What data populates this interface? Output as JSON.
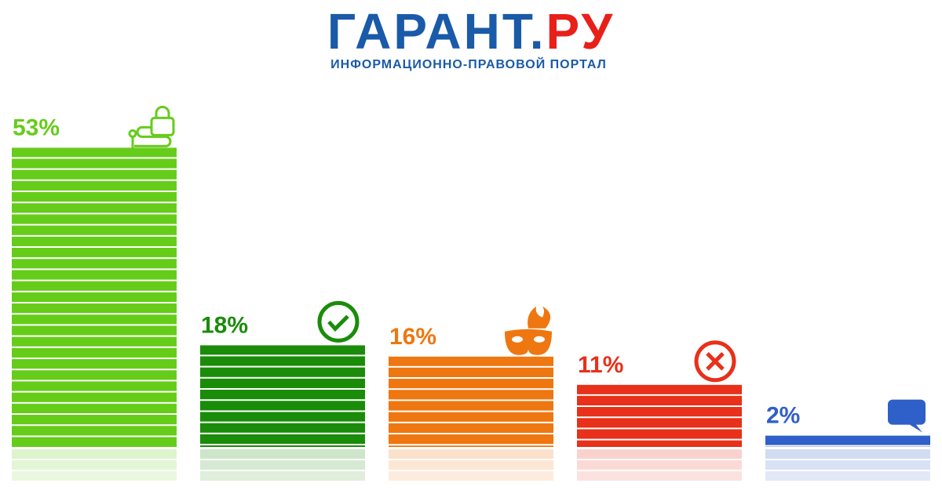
{
  "logo": {
    "main": "ГАРАНТ.",
    "accent": "РУ",
    "tagline": "ИНФОРМАЦИОННО-ПРАВОВОЙ ПОРТАЛ"
  },
  "chart_data": {
    "type": "bar",
    "values": [
      53,
      18,
      16,
      11,
      2
    ],
    "value_labels": [
      "53%",
      "18%",
      "16%",
      "11%",
      "2%"
    ],
    "colors": [
      "#66cc1a",
      "#1a8c0a",
      "#ee7711",
      "#e8301a",
      "#2f5fc8"
    ]
  }
}
